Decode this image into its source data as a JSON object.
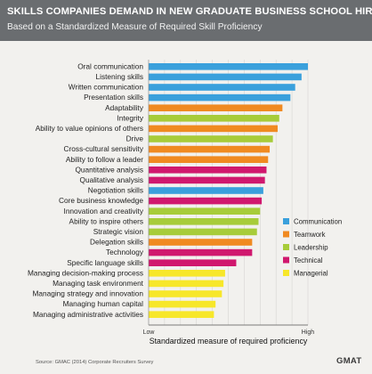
{
  "header": {
    "title": "SKILLS COMPANIES DEMAND IN NEW GRADUATE BUSINESS SCHOOL HIRES",
    "subtitle": "Based on a Standardized Measure of Required Skill Proficiency"
  },
  "footer": {
    "source": "Source: GMAC (2014) Corporate Recruiters Survey",
    "logo": "GMAT"
  },
  "colors": {
    "Communication": "#3aa0dc",
    "Teamwork": "#f08a21",
    "Leadership": "#a7cc3a",
    "Technical": "#d0186e",
    "Managerial": "#f7e72a"
  },
  "chart_data": {
    "type": "bar",
    "orientation": "horizontal",
    "xlabel": "Standardized measure of required proficiency",
    "xticks": [
      "Low",
      "High"
    ],
    "xlim": [
      0,
      100
    ],
    "grid": true,
    "legend_position": "right",
    "legend": [
      "Communication",
      "Teamwork",
      "Leadership",
      "Technical",
      "Managerial"
    ],
    "categories": [
      "Oral communication",
      "Listening skills",
      "Written communication",
      "Presentation skills",
      "Adaptability",
      "Integrity",
      "Ability to value opinions of others",
      "Drive",
      "Cross-cultural sensitivity",
      "Ability to follow a leader",
      "Quantitative analysis",
      "Qualitative analysis",
      "Negotiation skills",
      "Core business knowledge",
      "Innovation and creativity",
      "Ability to inspire others",
      "Strategic vision",
      "Delegation skills",
      "Technology",
      "Specific language skills",
      "Managing decision-making process",
      "Managing task environment",
      "Managing strategy and innovation",
      "Managing human capital",
      "Managing administrative activities"
    ],
    "values": [
      100,
      96,
      92,
      89,
      84,
      82,
      81,
      78,
      76,
      75,
      74,
      73,
      72,
      71,
      70,
      69,
      68,
      65,
      65,
      55,
      48,
      47,
      46,
      42,
      41
    ],
    "groups": [
      "Communication",
      "Communication",
      "Communication",
      "Communication",
      "Teamwork",
      "Leadership",
      "Teamwork",
      "Leadership",
      "Teamwork",
      "Teamwork",
      "Technical",
      "Technical",
      "Communication",
      "Technical",
      "Leadership",
      "Leadership",
      "Leadership",
      "Teamwork",
      "Technical",
      "Technical",
      "Managerial",
      "Managerial",
      "Managerial",
      "Managerial",
      "Managerial"
    ]
  }
}
